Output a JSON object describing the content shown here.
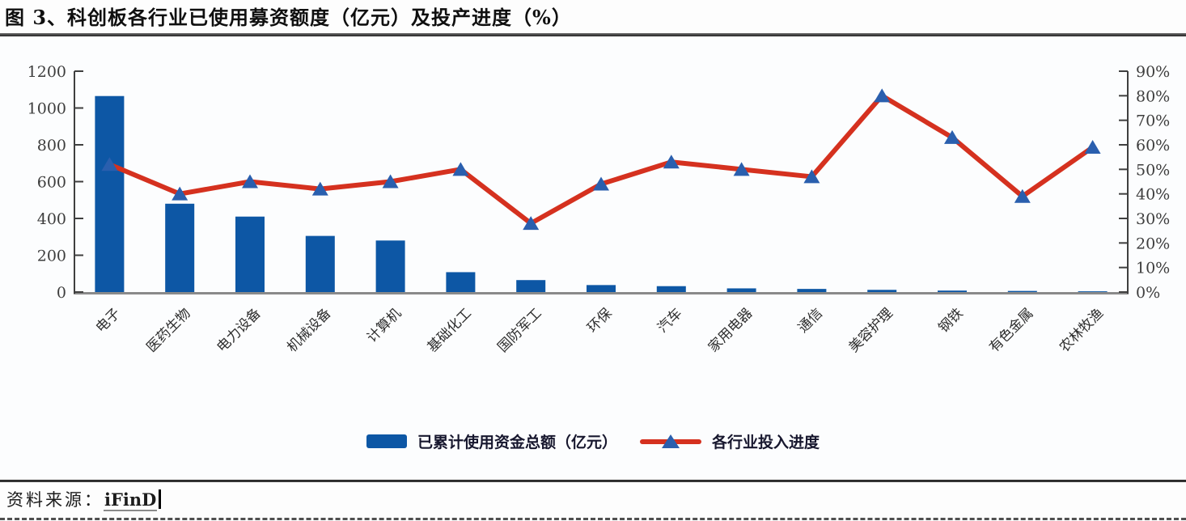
{
  "page": {
    "background": "#fdfdfd"
  },
  "figure": {
    "title": "图 3、科创板各行业已使用募资额度（亿元）及投产进度（%）",
    "source": {
      "label": "资料来源：",
      "value": "iFinD"
    }
  },
  "colors": {
    "bar": "#0d57a5",
    "line": "#d5311f",
    "marker": "#2a5fae",
    "axis": "#3f3f3f",
    "baseline": "#8a8a8a",
    "tick_text": "#3d3d3d",
    "category_text": "#2e2e2e",
    "title_text": "#0f0f0f",
    "legend_text": "#17172e"
  },
  "chart_data": {
    "type": "bar+line",
    "title": "科创板各行业已使用募资额度（亿元）及投产进度（%）",
    "categories": [
      "电子",
      "医药生物",
      "电力设备",
      "机械设备",
      "计算机",
      "基础化工",
      "国防军工",
      "环保",
      "汽车",
      "家用电器",
      "通信",
      "美容护理",
      "钢铁",
      "有色金属",
      "农林牧渔"
    ],
    "series": [
      {
        "name": "已累计使用资金总额（亿元）",
        "type": "bar",
        "axis": "left",
        "values": [
          1065,
          480,
          410,
          305,
          280,
          108,
          65,
          38,
          32,
          20,
          17,
          12,
          8,
          6,
          4
        ]
      },
      {
        "name": "各行业投入进度",
        "type": "line",
        "axis": "right",
        "unit": "%",
        "values": [
          52,
          40,
          45,
          42,
          45,
          50,
          28,
          44,
          53,
          50,
          47,
          80,
          63,
          39,
          59
        ]
      }
    ],
    "left_axis": {
      "min": 0,
      "max": 1200,
      "step": 200,
      "ticks": [
        "0",
        "200",
        "400",
        "600",
        "800",
        "1000",
        "1200"
      ]
    },
    "right_axis": {
      "min": 0,
      "max": 90,
      "step": 10,
      "unit": "%",
      "ticks": [
        "0%",
        "10%",
        "20%",
        "30%",
        "40%",
        "50%",
        "60%",
        "70%",
        "80%",
        "90%"
      ]
    },
    "grid": false,
    "legend_position": "bottom",
    "x_label_rotation": -45
  }
}
